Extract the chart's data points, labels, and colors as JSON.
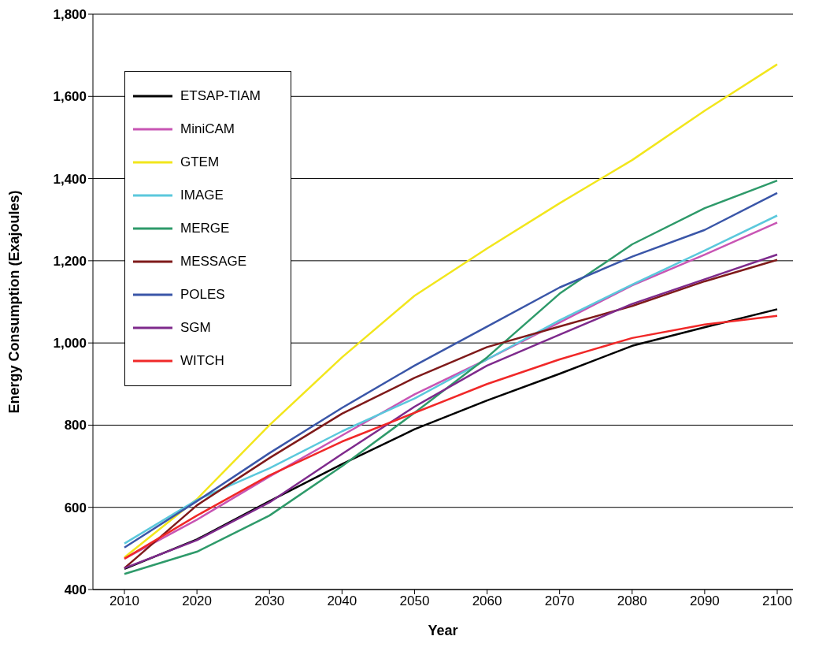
{
  "chart_data": {
    "type": "line",
    "xlabel": "Year",
    "ylabel": "Energy Consumption (Exajoules)",
    "categories": [
      "2010",
      "2020",
      "2030",
      "2040",
      "2050",
      "2060",
      "2070",
      "2080",
      "2090",
      "2100"
    ],
    "series": [
      {
        "name": "ETSAP-TIAM",
        "color": "#000000",
        "values": [
          450,
          522,
          615,
          705,
          790,
          860,
          925,
          993,
          1038,
          1082
        ]
      },
      {
        "name": "MiniCAM",
        "color": "#c855b4",
        "values": [
          475,
          570,
          675,
          775,
          875,
          960,
          1050,
          1140,
          1215,
          1293
        ]
      },
      {
        "name": "GTEM",
        "color": "#f2e61c",
        "values": [
          478,
          620,
          800,
          965,
          1115,
          1230,
          1340,
          1445,
          1565,
          1678
        ]
      },
      {
        "name": "IMAGE",
        "color": "#5bc8dc",
        "values": [
          512,
          618,
          695,
          785,
          865,
          960,
          1055,
          1142,
          1225,
          1310
        ]
      },
      {
        "name": "MERGE",
        "color": "#2e9a6a",
        "values": [
          438,
          492,
          580,
          700,
          830,
          965,
          1120,
          1240,
          1328,
          1395
        ]
      },
      {
        "name": "MESSAGE",
        "color": "#7f1a1a",
        "values": [
          452,
          605,
          720,
          828,
          915,
          990,
          1040,
          1090,
          1150,
          1202
        ]
      },
      {
        "name": "POLES",
        "color": "#3a56a8",
        "values": [
          502,
          615,
          732,
          842,
          945,
          1040,
          1135,
          1210,
          1275,
          1365
        ]
      },
      {
        "name": "SGM",
        "color": "#7e2a8c",
        "values": [
          452,
          520,
          612,
          730,
          845,
          945,
          1020,
          1095,
          1155,
          1215
        ]
      },
      {
        "name": "WITCH",
        "color": "#f02828",
        "values": [
          475,
          580,
          678,
          760,
          830,
          900,
          960,
          1012,
          1045,
          1066
        ]
      }
    ],
    "ylim": [
      400,
      1800
    ],
    "yticks": [
      {
        "value": 400,
        "label": "400"
      },
      {
        "value": 600,
        "label": "600"
      },
      {
        "value": 800,
        "label": "800"
      },
      {
        "value": 1000,
        "label": "1,000"
      },
      {
        "value": 1200,
        "label": "1,200"
      },
      {
        "value": 1400,
        "label": "1,400"
      },
      {
        "value": 1600,
        "label": "1,600"
      },
      {
        "value": 1800,
        "label": "1,800"
      }
    ],
    "grid": "y",
    "legend": "top left",
    "marker": "none",
    "line_style": "solid"
  }
}
